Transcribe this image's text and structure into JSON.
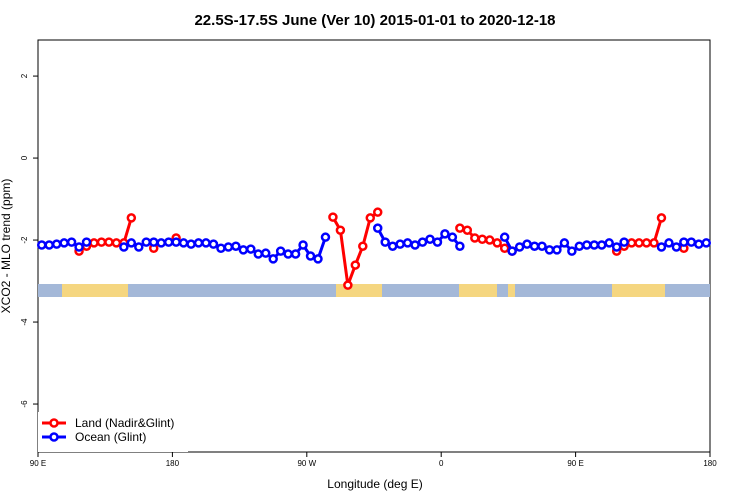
{
  "chart_data": {
    "type": "line",
    "title": "22.5S-17.5S June (Ver 10)   2015-01-01 to 2020-12-18",
    "xlabel": "Longitude (deg E)",
    "ylabel": "XCO2 - MLO trend (ppm)",
    "xlim": [
      90,
      540
    ],
    "ylim": [
      -7.17,
      2.88
    ],
    "xticks": [
      {
        "value": 90,
        "label": "90 E"
      },
      180,
      {
        "value": 270,
        "label": "90 W"
      },
      {
        "value": 360,
        "label": "0"
      },
      {
        "value": 450,
        "label": "90 E"
      },
      {
        "value": 540,
        "label": "180"
      }
    ],
    "yticks": [
      -6,
      -4,
      -2,
      0,
      2
    ],
    "legend": "bottom-left",
    "x": [
      92.5,
      97.5,
      102.5,
      107.5,
      112.5,
      117.5,
      122.5,
      127.5,
      132.5,
      137.5,
      142.5,
      147.5,
      152.5,
      157.5,
      162.5,
      167.5,
      172.5,
      177.5,
      182.5,
      187.5,
      192.5,
      197.5,
      202.5,
      207.5,
      212.5,
      217.5,
      222.5,
      227.5,
      232.5,
      237.5,
      242.5,
      247.5,
      252.5,
      257.5,
      262.5,
      267.5,
      272.5,
      277.5,
      282.5,
      287.5,
      292.5,
      297.5,
      302.5,
      307.5,
      312.5,
      317.5,
      322.5,
      327.5,
      332.5,
      337.5,
      342.5,
      347.5,
      352.5,
      357.5,
      362.5,
      367.5,
      372.5,
      377.5,
      382.5,
      387.5,
      392.5,
      397.5,
      402.5,
      407.5,
      412.5,
      417.5,
      422.5,
      427.5,
      432.5,
      437.5,
      442.5,
      447.5,
      452.5,
      457.5,
      462.5,
      467.5,
      472.5,
      477.5,
      482.5,
      487.5,
      492.5,
      497.5,
      502.5,
      507.5,
      512.5,
      517.5,
      522.5,
      527.5,
      532.5,
      537.5
    ],
    "series": [
      {
        "name": "Land (Nadir&Glint)",
        "color": "#ff0000",
        "values": [
          null,
          null,
          null,
          null,
          null,
          -2.27,
          -2.15,
          -2.07,
          -2.05,
          -2.05,
          -2.07,
          -2.07,
          -1.46,
          null,
          null,
          -2.2,
          null,
          null,
          -1.95,
          null,
          null,
          null,
          null,
          null,
          null,
          null,
          null,
          null,
          null,
          null,
          null,
          null,
          null,
          null,
          null,
          null,
          null,
          null,
          null,
          -1.44,
          -1.76,
          -3.1,
          -2.61,
          -2.15,
          -1.46,
          -1.32,
          null,
          null,
          null,
          null,
          null,
          null,
          null,
          null,
          null,
          null,
          -1.71,
          -1.76,
          -1.95,
          -1.98,
          -2.0,
          -2.07,
          -2.2,
          -2.27,
          null,
          null,
          null,
          null,
          null,
          null,
          null,
          null,
          null,
          null,
          null,
          null,
          null,
          -2.27,
          -2.15,
          -2.07,
          -2.07,
          -2.07,
          -2.07,
          -1.46,
          null,
          null,
          -2.2,
          null,
          null,
          null
        ]
      },
      {
        "name": "Ocean (Glint)",
        "color": "#0000ff",
        "values": [
          -2.12,
          -2.12,
          -2.1,
          -2.07,
          -2.05,
          -2.17,
          -2.05,
          null,
          null,
          null,
          null,
          -2.17,
          -2.07,
          -2.17,
          -2.05,
          -2.05,
          -2.07,
          -2.05,
          -2.05,
          -2.07,
          -2.1,
          -2.07,
          -2.07,
          -2.1,
          -2.2,
          -2.17,
          -2.15,
          -2.24,
          -2.22,
          -2.34,
          -2.32,
          -2.46,
          -2.27,
          -2.34,
          -2.34,
          -2.12,
          -2.39,
          -2.46,
          -1.93,
          null,
          null,
          null,
          null,
          null,
          null,
          -1.71,
          -2.05,
          -2.15,
          -2.1,
          -2.07,
          -2.12,
          -2.05,
          -1.98,
          -2.05,
          -1.85,
          -1.93,
          -2.15,
          null,
          null,
          null,
          null,
          null,
          -1.93,
          -2.27,
          -2.17,
          -2.1,
          -2.15,
          -2.15,
          -2.24,
          -2.24,
          -2.07,
          -2.27,
          -2.15,
          -2.12,
          -2.12,
          -2.12,
          -2.07,
          -2.17,
          -2.05,
          null,
          null,
          null,
          null,
          -2.17,
          -2.07,
          -2.17,
          -2.05,
          -2.05,
          -2.1,
          -2.07
        ]
      }
    ]
  }
}
